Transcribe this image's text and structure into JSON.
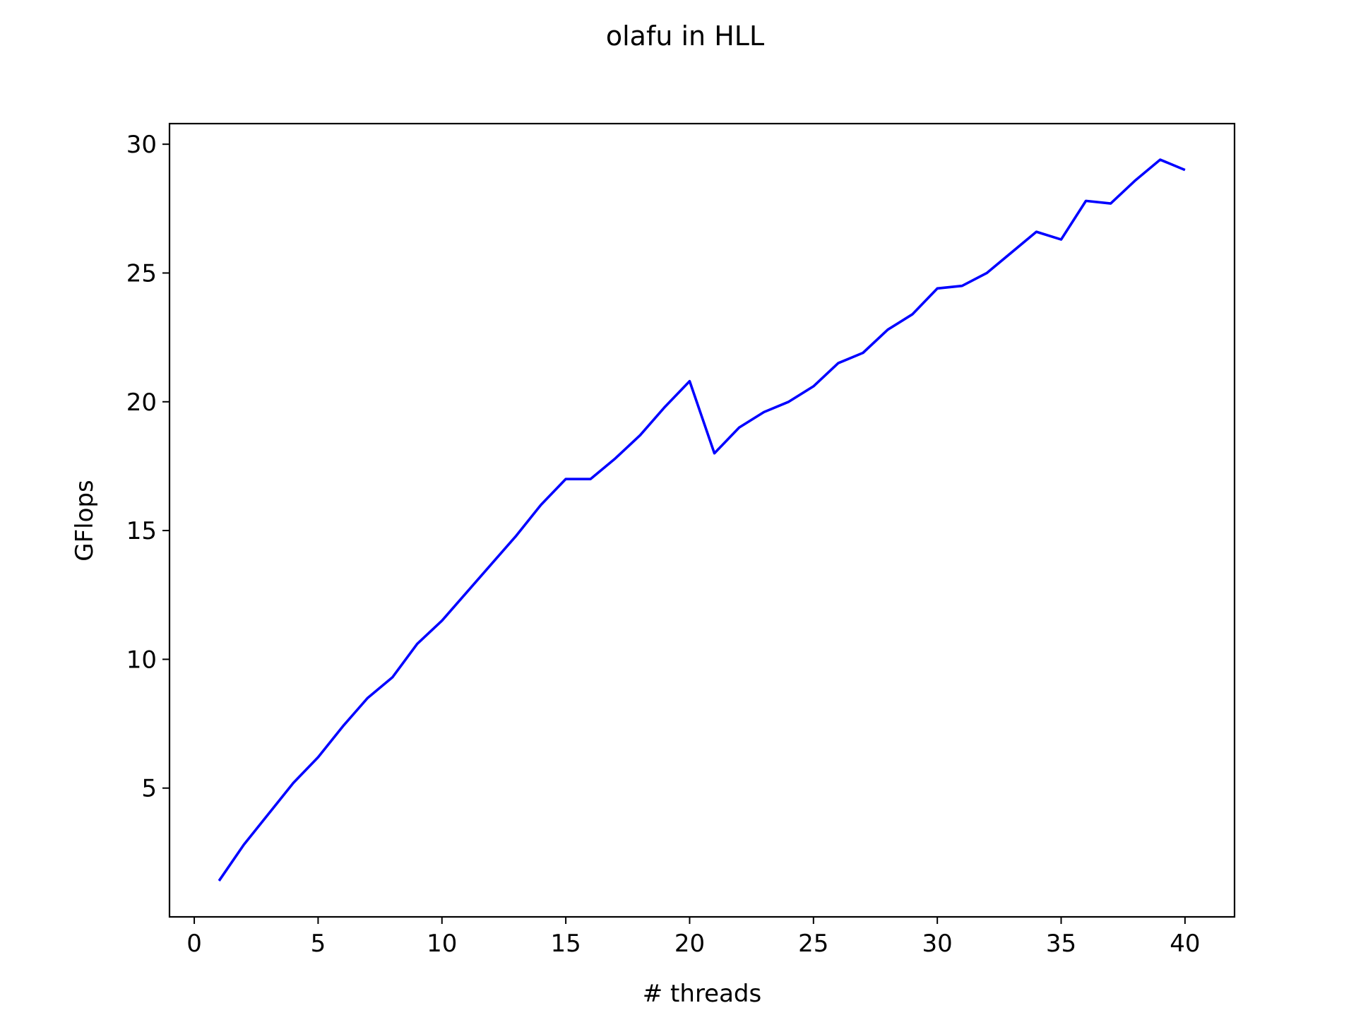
{
  "chart_data": {
    "type": "line",
    "title": "olafu in HLL",
    "xlabel": "# threads",
    "ylabel": "GFlops",
    "xlim": [
      -1,
      42
    ],
    "ylim": [
      0,
      30.8
    ],
    "x_ticks": [
      0,
      5,
      10,
      15,
      20,
      25,
      30,
      35,
      40
    ],
    "y_ticks": [
      5,
      10,
      15,
      20,
      25,
      30
    ],
    "grid": false,
    "legend": "none",
    "series": [
      {
        "color": "#0000ff",
        "x": [
          1,
          2,
          3,
          4,
          5,
          6,
          7,
          8,
          9,
          10,
          11,
          12,
          13,
          14,
          15,
          16,
          17,
          18,
          19,
          20,
          21,
          22,
          23,
          24,
          25,
          26,
          27,
          28,
          29,
          30,
          31,
          32,
          33,
          34,
          35,
          36,
          37,
          38,
          39,
          40
        ],
        "y": [
          1.4,
          2.8,
          4.0,
          5.2,
          6.2,
          7.4,
          8.5,
          9.3,
          10.6,
          11.5,
          12.6,
          13.7,
          14.8,
          16.0,
          17.0,
          17.0,
          17.8,
          18.7,
          19.8,
          20.8,
          18.0,
          19.0,
          19.6,
          20.0,
          20.6,
          21.5,
          21.9,
          22.8,
          23.4,
          24.4,
          24.5,
          25.0,
          25.8,
          26.6,
          26.3,
          27.8,
          27.7,
          28.6,
          29.4,
          29.0
        ]
      }
    ]
  }
}
